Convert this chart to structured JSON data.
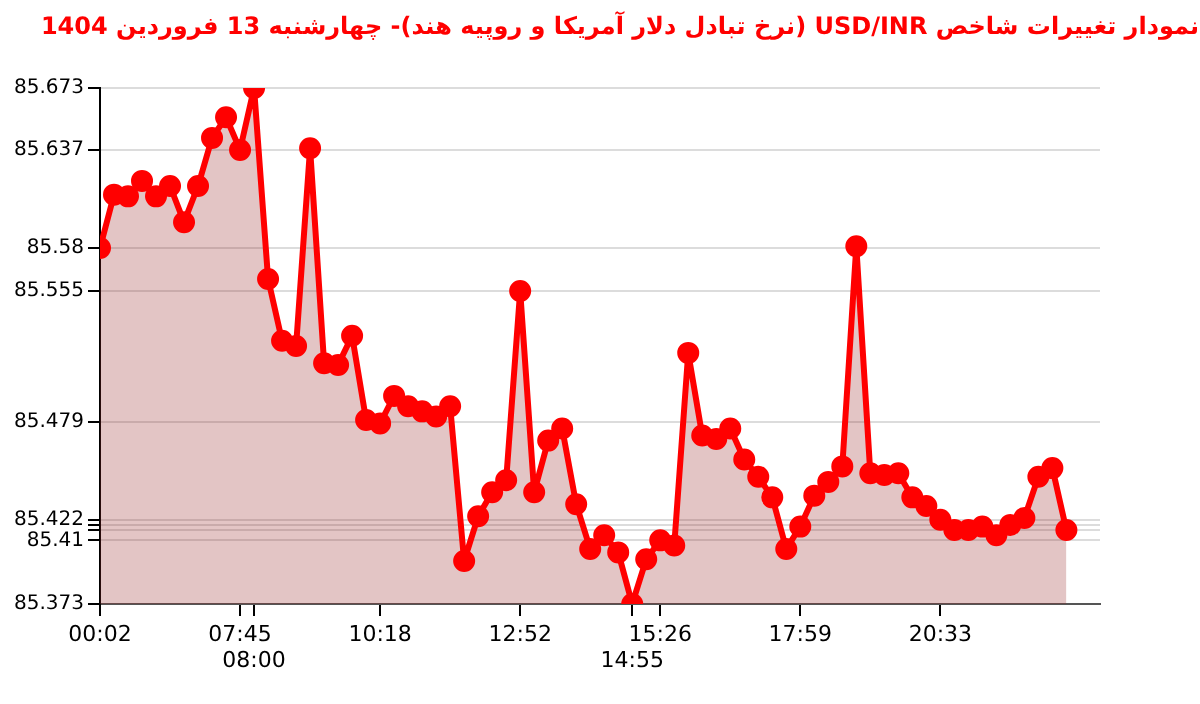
{
  "chart_data": {
    "type": "area",
    "title": "نمودار تغییرات شاخص USD/INR (نرخ تبادل دلار آمریکا و روپیه هند)- چهارشنبه  13 فروردین 1404",
    "categories": [
      "00:02",
      null,
      null,
      null,
      null,
      null,
      null,
      null,
      null,
      null,
      "07:45",
      "08:00",
      null,
      null,
      null,
      null,
      null,
      null,
      null,
      null,
      "10:18",
      null,
      null,
      null,
      null,
      null,
      null,
      null,
      null,
      null,
      "12:52",
      null,
      null,
      null,
      null,
      null,
      null,
      null,
      "14:55",
      null,
      "15:26",
      null,
      null,
      null,
      null,
      null,
      null,
      null,
      null,
      null,
      "17:59",
      null,
      null,
      null,
      null,
      null,
      null,
      null,
      null,
      null,
      "20:33",
      null,
      null,
      null,
      null,
      null,
      null,
      null,
      null,
      null
    ],
    "series": [
      {
        "color": "#ff0000",
        "values": [
          85.58,
          85.611,
          85.61,
          85.619,
          85.61,
          85.616,
          85.595,
          85.616,
          85.644,
          85.656,
          85.637,
          85.673,
          85.562,
          85.526,
          85.523,
          85.638,
          85.513,
          85.512,
          85.529,
          85.48,
          85.478,
          85.494,
          85.488,
          85.485,
          85.482,
          85.488,
          85.398,
          85.424,
          85.438,
          85.445,
          85.555,
          85.438,
          85.468,
          85.475,
          85.431,
          85.405,
          85.413,
          85.403,
          85.373,
          85.399,
          85.41,
          85.407,
          85.519,
          85.471,
          85.469,
          85.475,
          85.457,
          85.447,
          85.435,
          85.405,
          85.418,
          85.436,
          85.444,
          85.453,
          85.581,
          85.449,
          85.448,
          85.449,
          85.435,
          85.43,
          85.422,
          85.416,
          85.416,
          85.418,
          85.413,
          85.419,
          85.423,
          85.447,
          85.452,
          85.416
        ]
      }
    ],
    "ylim": [
      85.373,
      85.673
    ],
    "yticks": [
      85.373,
      85.41,
      {
        "value": 85.416,
        "label": null
      },
      {
        "value": 85.419,
        "label": null
      },
      85.422,
      85.479,
      85.555,
      85.58,
      85.637,
      85.673
    ],
    "grid": "y",
    "marker": "circle",
    "line_style": "solid",
    "legend": false
  }
}
